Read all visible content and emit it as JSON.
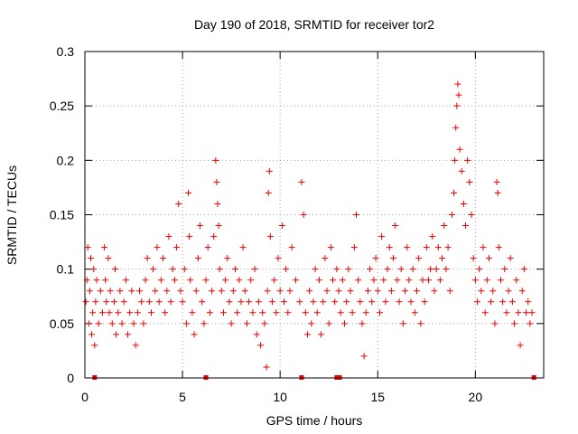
{
  "chart_data": {
    "type": "scatter",
    "title": "Day 190 of 2018, SRMTID for receiver tor2",
    "xlabel": "GPS time / hours",
    "ylabel": "SRMTID / TECUs",
    "xlim": [
      0,
      23.5
    ],
    "ylim": [
      0,
      0.3
    ],
    "x_ticks": [
      0,
      5,
      10,
      15,
      20
    ],
    "y_ticks": [
      0,
      0.05,
      0.1,
      0.15,
      0.2,
      0.25,
      0.3
    ],
    "x_tick_labels": [
      "0",
      "5",
      "10",
      "15",
      "20"
    ],
    "y_tick_labels": [
      "0",
      "0.05",
      "0.1",
      "0.15",
      "0.2",
      "0.25",
      "0.3"
    ],
    "grid": true,
    "marker": "plus",
    "color": "#ee0000",
    "series": [
      {
        "name": "SRMTID",
        "points": [
          [
            0.05,
            0.07
          ],
          [
            0.1,
            0.09
          ],
          [
            0.15,
            0.12
          ],
          [
            0.2,
            0.05
          ],
          [
            0.25,
            0.08
          ],
          [
            0.3,
            0.11
          ],
          [
            0.35,
            0.04
          ],
          [
            0.4,
            0.06
          ],
          [
            0.45,
            0.1
          ],
          [
            0.5,
            0.03
          ],
          [
            0.55,
            0.07
          ],
          [
            0.6,
            0.09
          ],
          [
            0.7,
            0.05
          ],
          [
            0.8,
            0.08
          ],
          [
            0.9,
            0.06
          ],
          [
            1.0,
            0.12
          ],
          [
            1.05,
            0.09
          ],
          [
            1.1,
            0.07
          ],
          [
            1.2,
            0.11
          ],
          [
            1.25,
            0.06
          ],
          [
            1.3,
            0.08
          ],
          [
            1.4,
            0.05
          ],
          [
            1.5,
            0.07
          ],
          [
            1.55,
            0.1
          ],
          [
            1.6,
            0.04
          ],
          [
            1.7,
            0.06
          ],
          [
            1.8,
            0.08
          ],
          [
            1.9,
            0.05
          ],
          [
            2.0,
            0.07
          ],
          [
            2.1,
            0.09
          ],
          [
            2.2,
            0.04
          ],
          [
            2.3,
            0.06
          ],
          [
            2.4,
            0.08
          ],
          [
            2.5,
            0.05
          ],
          [
            2.6,
            0.03
          ],
          [
            2.7,
            0.06
          ],
          [
            2.8,
            0.08
          ],
          [
            2.9,
            0.07
          ],
          [
            3.0,
            0.05
          ],
          [
            3.1,
            0.09
          ],
          [
            3.2,
            0.11
          ],
          [
            3.3,
            0.07
          ],
          [
            3.4,
            0.06
          ],
          [
            3.5,
            0.1
          ],
          [
            3.6,
            0.08
          ],
          [
            3.7,
            0.12
          ],
          [
            3.8,
            0.07
          ],
          [
            3.9,
            0.09
          ],
          [
            4.0,
            0.11
          ],
          [
            4.1,
            0.06
          ],
          [
            4.2,
            0.08
          ],
          [
            4.3,
            0.13
          ],
          [
            4.4,
            0.07
          ],
          [
            4.5,
            0.1
          ],
          [
            4.6,
            0.09
          ],
          [
            4.7,
            0.12
          ],
          [
            4.8,
            0.16
          ],
          [
            4.9,
            0.08
          ],
          [
            5.0,
            0.07
          ],
          [
            5.1,
            0.1
          ],
          [
            5.2,
            0.05
          ],
          [
            5.3,
            0.17
          ],
          [
            5.35,
            0.13
          ],
          [
            5.4,
            0.09
          ],
          [
            5.5,
            0.06
          ],
          [
            5.6,
            0.04
          ],
          [
            5.7,
            0.08
          ],
          [
            5.8,
            0.11
          ],
          [
            5.9,
            0.14
          ],
          [
            6.0,
            0.07
          ],
          [
            6.1,
            0.05
          ],
          [
            6.2,
            0.09
          ],
          [
            6.3,
            0.12
          ],
          [
            6.4,
            0.06
          ],
          [
            6.5,
            0.08
          ],
          [
            6.6,
            0.13
          ],
          [
            6.7,
            0.2
          ],
          [
            6.75,
            0.18
          ],
          [
            6.8,
            0.16
          ],
          [
            6.85,
            0.14
          ],
          [
            6.9,
            0.1
          ],
          [
            7.0,
            0.08
          ],
          [
            7.1,
            0.06
          ],
          [
            7.2,
            0.09
          ],
          [
            7.3,
            0.11
          ],
          [
            7.4,
            0.07
          ],
          [
            7.5,
            0.05
          ],
          [
            7.6,
            0.08
          ],
          [
            7.7,
            0.1
          ],
          [
            7.8,
            0.06
          ],
          [
            7.9,
            0.09
          ],
          [
            8.0,
            0.07
          ],
          [
            8.1,
            0.12
          ],
          [
            8.2,
            0.08
          ],
          [
            8.3,
            0.05
          ],
          [
            8.4,
            0.07
          ],
          [
            8.5,
            0.09
          ],
          [
            8.6,
            0.06
          ],
          [
            8.7,
            0.1
          ],
          [
            8.8,
            0.04
          ],
          [
            8.9,
            0.07
          ],
          [
            9.0,
            0.03
          ],
          [
            9.1,
            0.06
          ],
          [
            9.2,
            0.05
          ],
          [
            9.3,
            0.01
          ],
          [
            9.35,
            0.08
          ],
          [
            9.4,
            0.17
          ],
          [
            9.45,
            0.19
          ],
          [
            9.5,
            0.13
          ],
          [
            9.6,
            0.07
          ],
          [
            9.7,
            0.09
          ],
          [
            9.8,
            0.06
          ],
          [
            9.9,
            0.11
          ],
          [
            10.0,
            0.08
          ],
          [
            10.1,
            0.14
          ],
          [
            10.2,
            0.07
          ],
          [
            10.3,
            0.1
          ],
          [
            10.4,
            0.06
          ],
          [
            10.5,
            0.08
          ],
          [
            10.6,
            0.12
          ],
          [
            10.8,
            0.09
          ],
          [
            11.0,
            0.07
          ],
          [
            11.1,
            0.18
          ],
          [
            11.2,
            0.15
          ],
          [
            11.3,
            0.06
          ],
          [
            11.4,
            0.04
          ],
          [
            11.5,
            0.08
          ],
          [
            11.6,
            0.05
          ],
          [
            11.7,
            0.07
          ],
          [
            11.8,
            0.1
          ],
          [
            11.9,
            0.06
          ],
          [
            12.0,
            0.09
          ],
          [
            12.1,
            0.04
          ],
          [
            12.2,
            0.07
          ],
          [
            12.3,
            0.11
          ],
          [
            12.4,
            0.08
          ],
          [
            12.5,
            0.05
          ],
          [
            12.6,
            0.12
          ],
          [
            12.7,
            0.09
          ],
          [
            12.8,
            0.07
          ],
          [
            12.9,
            0.1
          ],
          [
            13.0,
            0.08
          ],
          [
            13.1,
            0.06
          ],
          [
            13.2,
            0.09
          ],
          [
            13.3,
            0.05
          ],
          [
            13.4,
            0.07
          ],
          [
            13.5,
            0.1
          ],
          [
            13.6,
            0.08
          ],
          [
            13.7,
            0.06
          ],
          [
            13.8,
            0.12
          ],
          [
            13.9,
            0.15
          ],
          [
            14.0,
            0.09
          ],
          [
            14.1,
            0.07
          ],
          [
            14.2,
            0.05
          ],
          [
            14.3,
            0.02
          ],
          [
            14.4,
            0.06
          ],
          [
            14.5,
            0.08
          ],
          [
            14.6,
            0.1
          ],
          [
            14.7,
            0.07
          ],
          [
            14.8,
            0.09
          ],
          [
            14.9,
            0.11
          ],
          [
            15.0,
            0.08
          ],
          [
            15.1,
            0.06
          ],
          [
            15.2,
            0.13
          ],
          [
            15.3,
            0.09
          ],
          [
            15.4,
            0.07
          ],
          [
            15.5,
            0.1
          ],
          [
            15.6,
            0.12
          ],
          [
            15.7,
            0.08
          ],
          [
            15.8,
            0.11
          ],
          [
            15.9,
            0.14
          ],
          [
            16.0,
            0.09
          ],
          [
            16.1,
            0.07
          ],
          [
            16.2,
            0.1
          ],
          [
            16.3,
            0.05
          ],
          [
            16.4,
            0.08
          ],
          [
            16.5,
            0.12
          ],
          [
            16.6,
            0.09
          ],
          [
            16.7,
            0.07
          ],
          [
            16.8,
            0.1
          ],
          [
            16.9,
            0.06
          ],
          [
            17.0,
            0.08
          ],
          [
            17.1,
            0.11
          ],
          [
            17.2,
            0.05
          ],
          [
            17.3,
            0.09
          ],
          [
            17.4,
            0.07
          ],
          [
            17.5,
            0.12
          ],
          [
            17.6,
            0.09
          ],
          [
            17.7,
            0.1
          ],
          [
            17.8,
            0.13
          ],
          [
            17.9,
            0.08
          ],
          [
            18.0,
            0.1
          ],
          [
            18.1,
            0.12
          ],
          [
            18.2,
            0.09
          ],
          [
            18.3,
            0.11
          ],
          [
            18.4,
            0.14
          ],
          [
            18.5,
            0.1
          ],
          [
            18.6,
            0.12
          ],
          [
            18.7,
            0.08
          ],
          [
            18.8,
            0.15
          ],
          [
            18.9,
            0.17
          ],
          [
            18.95,
            0.2
          ],
          [
            19.0,
            0.23
          ],
          [
            19.05,
            0.25
          ],
          [
            19.1,
            0.27
          ],
          [
            19.15,
            0.26
          ],
          [
            19.2,
            0.21
          ],
          [
            19.3,
            0.19
          ],
          [
            19.4,
            0.16
          ],
          [
            19.5,
            0.14
          ],
          [
            19.6,
            0.2
          ],
          [
            19.7,
            0.18
          ],
          [
            19.8,
            0.15
          ],
          [
            19.9,
            0.11
          ],
          [
            20.0,
            0.09
          ],
          [
            20.1,
            0.07
          ],
          [
            20.2,
            0.1
          ],
          [
            20.3,
            0.08
          ],
          [
            20.4,
            0.12
          ],
          [
            20.5,
            0.06
          ],
          [
            20.6,
            0.09
          ],
          [
            20.7,
            0.11
          ],
          [
            20.8,
            0.07
          ],
          [
            20.9,
            0.08
          ],
          [
            21.0,
            0.05
          ],
          [
            21.1,
            0.18
          ],
          [
            21.15,
            0.17
          ],
          [
            21.2,
            0.12
          ],
          [
            21.3,
            0.09
          ],
          [
            21.4,
            0.07
          ],
          [
            21.5,
            0.1
          ],
          [
            21.6,
            0.06
          ],
          [
            21.7,
            0.08
          ],
          [
            21.8,
            0.11
          ],
          [
            21.9,
            0.07
          ],
          [
            22.0,
            0.05
          ],
          [
            22.1,
            0.09
          ],
          [
            22.2,
            0.06
          ],
          [
            22.3,
            0.03
          ],
          [
            22.4,
            0.08
          ],
          [
            22.5,
            0.1
          ],
          [
            22.6,
            0.06
          ],
          [
            22.7,
            0.07
          ],
          [
            22.8,
            0.05
          ],
          [
            22.9,
            0.06
          ]
        ]
      }
    ],
    "gap_markers": [
      0.5,
      6.2,
      11.1,
      12.9,
      13.05,
      23.0
    ]
  }
}
